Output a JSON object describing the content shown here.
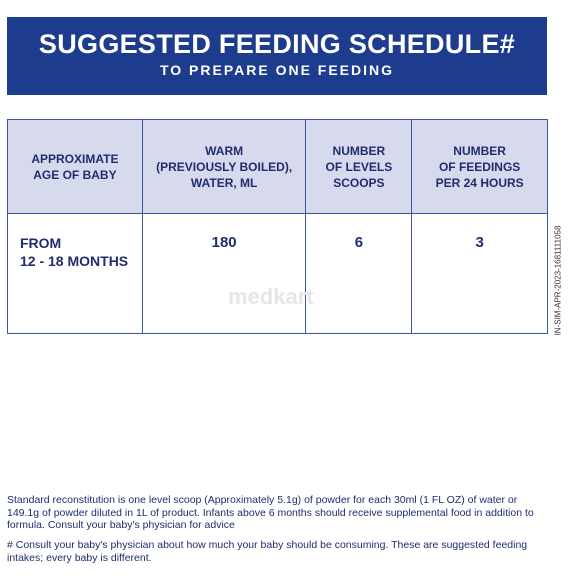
{
  "header": {
    "title": "SUGGESTED FEEDING SCHEDULE#",
    "subtitle": "TO PREPARE ONE FEEDING"
  },
  "table": {
    "columns": [
      "APPROXIMATE\nAGE OF BABY",
      "WARM\n(PREVIOUSLY BOILED),\nWATER, ML",
      "NUMBER\nOF LEVELS\nSCOOPS",
      "NUMBER\nOF FEEDINGS\nPER 24 HOURS"
    ],
    "rows": [
      [
        "FROM\n12 - 18 MONTHS",
        "180",
        "6",
        "3"
      ]
    ]
  },
  "watermark": "medkart",
  "side_code": "IN-SIM-APR-2023-1681111058",
  "footnotes": [
    "Standard reconstitution is one level scoop (Approximately 5.1g) of powder for each 30ml (1 FL OZ) of water or 149.1g of powder diluted in 1L of product. Infants above 6 months should receive supplemental food in addition to formula. Consult your baby's physician for advice",
    "# Consult your baby's physician about how much your baby should be consuming. These are suggested feeding intakes; every baby is different."
  ]
}
